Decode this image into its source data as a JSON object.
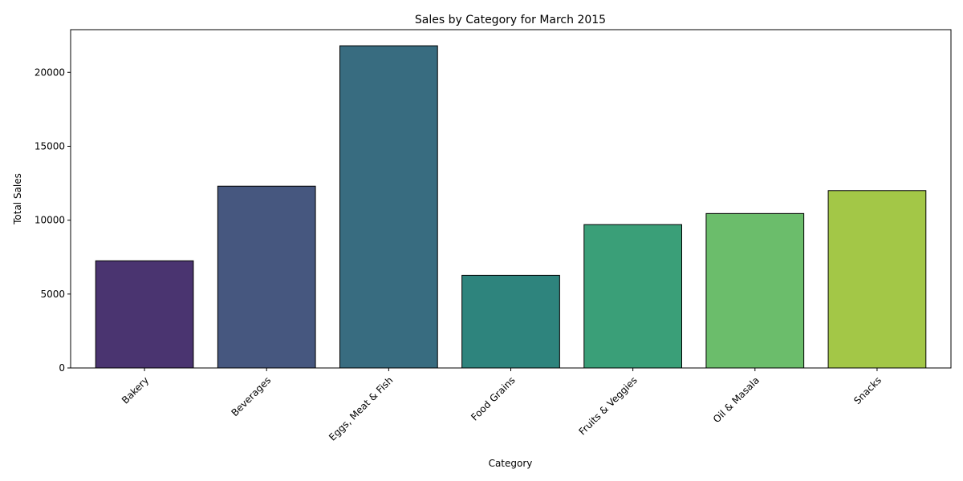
{
  "chart_data": {
    "type": "bar",
    "title": "Sales by Category for March 2015",
    "xlabel": "Category",
    "ylabel": "Total Sales",
    "categories": [
      "Bakery",
      "Beverages",
      "Eggs, Meat & Fish",
      "Food Grains",
      "Fruits & Veggies",
      "Oil & Masala",
      "Snacks"
    ],
    "values": [
      7250,
      12300,
      21800,
      6270,
      9700,
      10450,
      12000
    ],
    "colors": [
      "#4a3470",
      "#46577f",
      "#386c80",
      "#2e847d",
      "#3a9f78",
      "#6bbd6b",
      "#a3c747"
    ],
    "edge_color": "#000000",
    "ylim": [
      0,
      22890
    ],
    "yticks": [
      0,
      5000,
      10000,
      15000,
      20000
    ],
    "ytick_labels": [
      "0",
      "5000",
      "10000",
      "15000",
      "20000"
    ],
    "grid": false,
    "xtick_rotation": 45
  }
}
